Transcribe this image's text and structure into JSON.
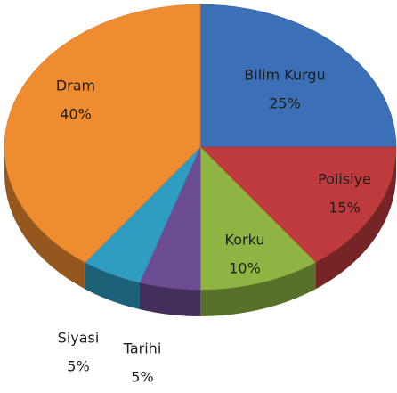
{
  "chart_data": {
    "type": "pie",
    "categories": [
      "Bilim Kurgu",
      "Polisiye",
      "Korku",
      "Tarihi",
      "Siyasi",
      "Dram"
    ],
    "values": [
      25,
      15,
      10,
      5,
      5,
      40
    ],
    "value_labels": [
      "25%",
      "15%",
      "10%",
      "5%",
      "5%",
      "40%"
    ],
    "colors": [
      "#3b6fb6",
      "#be3a3c",
      "#8fb443",
      "#6c4c92",
      "#2f9cc2",
      "#f08c30"
    ]
  }
}
